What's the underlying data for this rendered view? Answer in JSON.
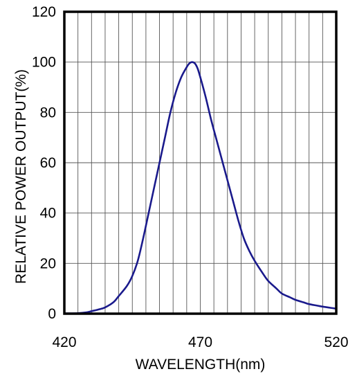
{
  "chart_data": {
    "type": "line",
    "title": "",
    "xlabel": "WAVELENGTH(nm)",
    "ylabel": "RELATIVE POWER OUTPUT(%)",
    "xlim": [
      420,
      520
    ],
    "ylim": [
      0,
      120
    ],
    "xticks": [
      420,
      470,
      520
    ],
    "yticks": [
      0,
      20,
      40,
      60,
      80,
      100,
      120
    ],
    "x_minor_grid_step": 5,
    "grid": true,
    "legend": "none",
    "series": [
      {
        "color": "#1a1a8c",
        "points": [
          [
            420,
            0.1
          ],
          [
            425,
            0.2
          ],
          [
            428,
            0.5
          ],
          [
            430,
            1.0
          ],
          [
            433,
            1.8
          ],
          [
            435,
            2.5
          ],
          [
            438,
            4.5
          ],
          [
            440,
            7.0
          ],
          [
            443,
            11.0
          ],
          [
            445,
            15.0
          ],
          [
            447,
            21.0
          ],
          [
            449,
            30.0
          ],
          [
            451,
            40.0
          ],
          [
            453,
            50.0
          ],
          [
            455,
            60.0
          ],
          [
            457,
            70.0
          ],
          [
            459,
            80.0
          ],
          [
            461,
            88.0
          ],
          [
            463,
            94.0
          ],
          [
            465,
            98.0
          ],
          [
            466,
            99.5
          ],
          [
            467,
            100.0
          ],
          [
            468,
            99.5
          ],
          [
            469,
            97.5
          ],
          [
            470,
            94.0
          ],
          [
            472,
            86.0
          ],
          [
            474,
            77.0
          ],
          [
            476,
            69.0
          ],
          [
            478,
            61.0
          ],
          [
            480,
            53.0
          ],
          [
            482,
            45.0
          ],
          [
            484,
            37.0
          ],
          [
            486,
            30.0
          ],
          [
            488,
            25.0
          ],
          [
            490,
            21.0
          ],
          [
            493,
            16.0
          ],
          [
            495,
            13.0
          ],
          [
            498,
            10.0
          ],
          [
            500,
            8.0
          ],
          [
            503,
            6.5
          ],
          [
            505,
            5.5
          ],
          [
            508,
            4.5
          ],
          [
            510,
            3.8
          ],
          [
            513,
            3.2
          ],
          [
            515,
            2.8
          ],
          [
            518,
            2.3
          ],
          [
            520,
            2.0
          ]
        ]
      }
    ]
  }
}
